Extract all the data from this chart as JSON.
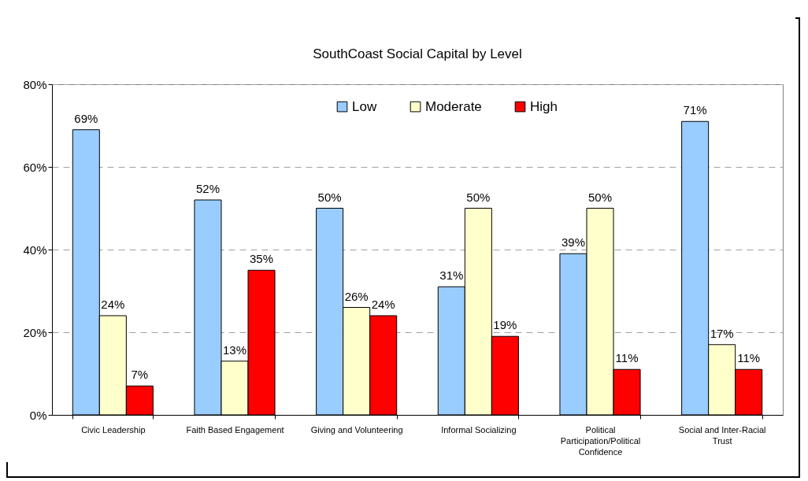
{
  "chart_data": {
    "type": "bar",
    "title": "SouthCoast Social Capital by Level",
    "categories": [
      "Civic Leadership",
      "Faith Based Engagement",
      "Giving and Volunteering",
      "Informal Socializing",
      "Political Participation/Political Confidence",
      "Social and Inter-Racial Trust"
    ],
    "series": [
      {
        "name": "Low",
        "color": "#99ccff",
        "values": [
          69,
          52,
          50,
          31,
          39,
          71
        ],
        "value_labels": [
          "69%",
          "52%",
          "50%",
          "31%",
          "39%",
          "71%"
        ]
      },
      {
        "name": "Moderate",
        "color": "#ffffcc",
        "values": [
          24,
          13,
          26,
          50,
          50,
          17
        ],
        "value_labels": [
          "24%",
          "13%",
          "26%",
          "50%",
          "50%",
          "17%"
        ]
      },
      {
        "name": "High",
        "color": "#ff0000",
        "values": [
          7,
          35,
          24,
          19,
          11,
          11
        ],
        "value_labels": [
          "7%",
          "35%",
          "24%",
          "19%",
          "11%",
          "11%"
        ]
      }
    ],
    "ylim": [
      0,
      80
    ],
    "yticks": [
      {
        "value": 0,
        "label": "0%"
      },
      {
        "value": 20,
        "label": "20%"
      },
      {
        "value": 40,
        "label": "40%"
      },
      {
        "value": 60,
        "label": "60%"
      },
      {
        "value": 80,
        "label": "80%"
      }
    ],
    "grid": "y",
    "legend": "top"
  }
}
